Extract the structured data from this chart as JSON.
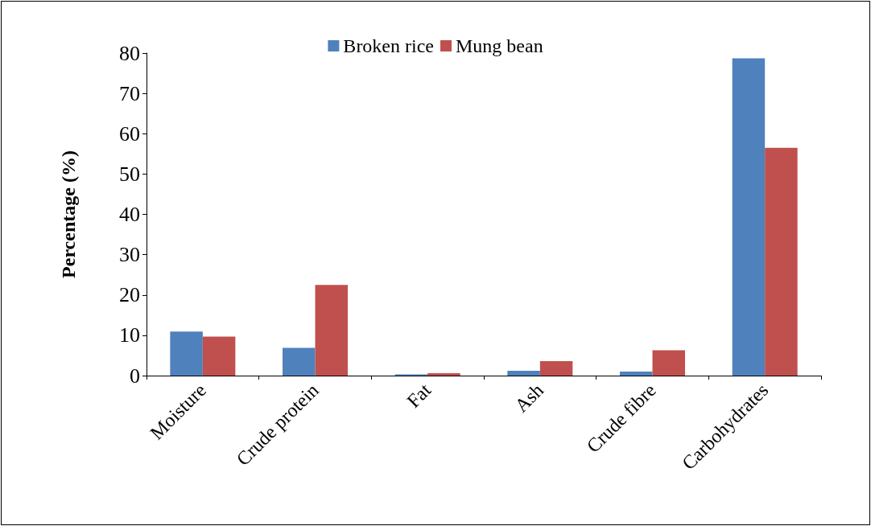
{
  "chart_data": {
    "type": "bar",
    "ylabel": "Percentage (%)",
    "categories": [
      "Moisture",
      "Crude protein",
      "Fat",
      "Ash",
      "Crude fibre",
      "Carbohydrates"
    ],
    "series": [
      {
        "name": "Broken rice",
        "color": "#4f81bd",
        "values": [
          10.9,
          6.9,
          0.3,
          1.2,
          1.0,
          78.7
        ]
      },
      {
        "name": "Mung bean",
        "color": "#c0504d",
        "values": [
          9.7,
          22.5,
          0.6,
          3.6,
          6.3,
          56.5
        ]
      }
    ],
    "ylim": [
      0,
      80
    ],
    "yticks": [
      0,
      10,
      20,
      30,
      40,
      50,
      60,
      70,
      80
    ],
    "grid": false,
    "legend": "top"
  }
}
